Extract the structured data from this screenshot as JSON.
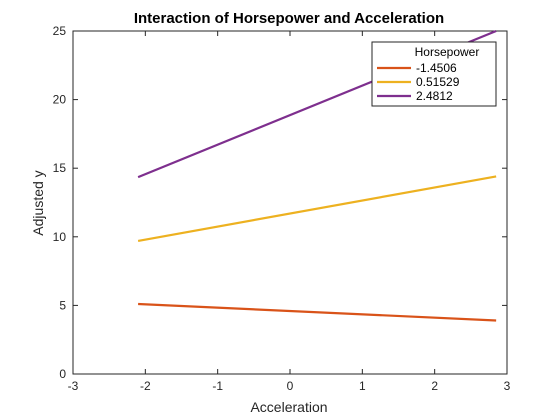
{
  "chart_data": {
    "type": "line",
    "title": "Interaction of Horsepower and Acceleration",
    "xlabel": "Acceleration",
    "ylabel": "Adjusted y",
    "xlim": [
      -3,
      3
    ],
    "ylim": [
      0,
      25
    ],
    "xticks": [
      -3,
      -2,
      -1,
      0,
      1,
      2,
      3
    ],
    "yticks": [
      0,
      5,
      10,
      15,
      20,
      25
    ],
    "xtick_labels": [
      "-3",
      "-2",
      "-1",
      "0",
      "1",
      "2",
      "3"
    ],
    "ytick_labels": [
      "0",
      "5",
      "10",
      "15",
      "20",
      "25"
    ],
    "grid": false,
    "legend": {
      "title": "Horsepower",
      "position": "top-right"
    },
    "series": [
      {
        "name": "-1.4506",
        "color": "#d95319",
        "x": [
          -2.1,
          2.85
        ],
        "y": [
          5.1,
          3.9
        ]
      },
      {
        "name": "0.51529",
        "color": "#edb120",
        "x": [
          -2.1,
          2.85
        ],
        "y": [
          9.7,
          14.4
        ]
      },
      {
        "name": "2.4812",
        "color": "#7e2f8e",
        "x": [
          -2.1,
          2.85
        ],
        "y": [
          14.35,
          25.0
        ]
      }
    ]
  }
}
